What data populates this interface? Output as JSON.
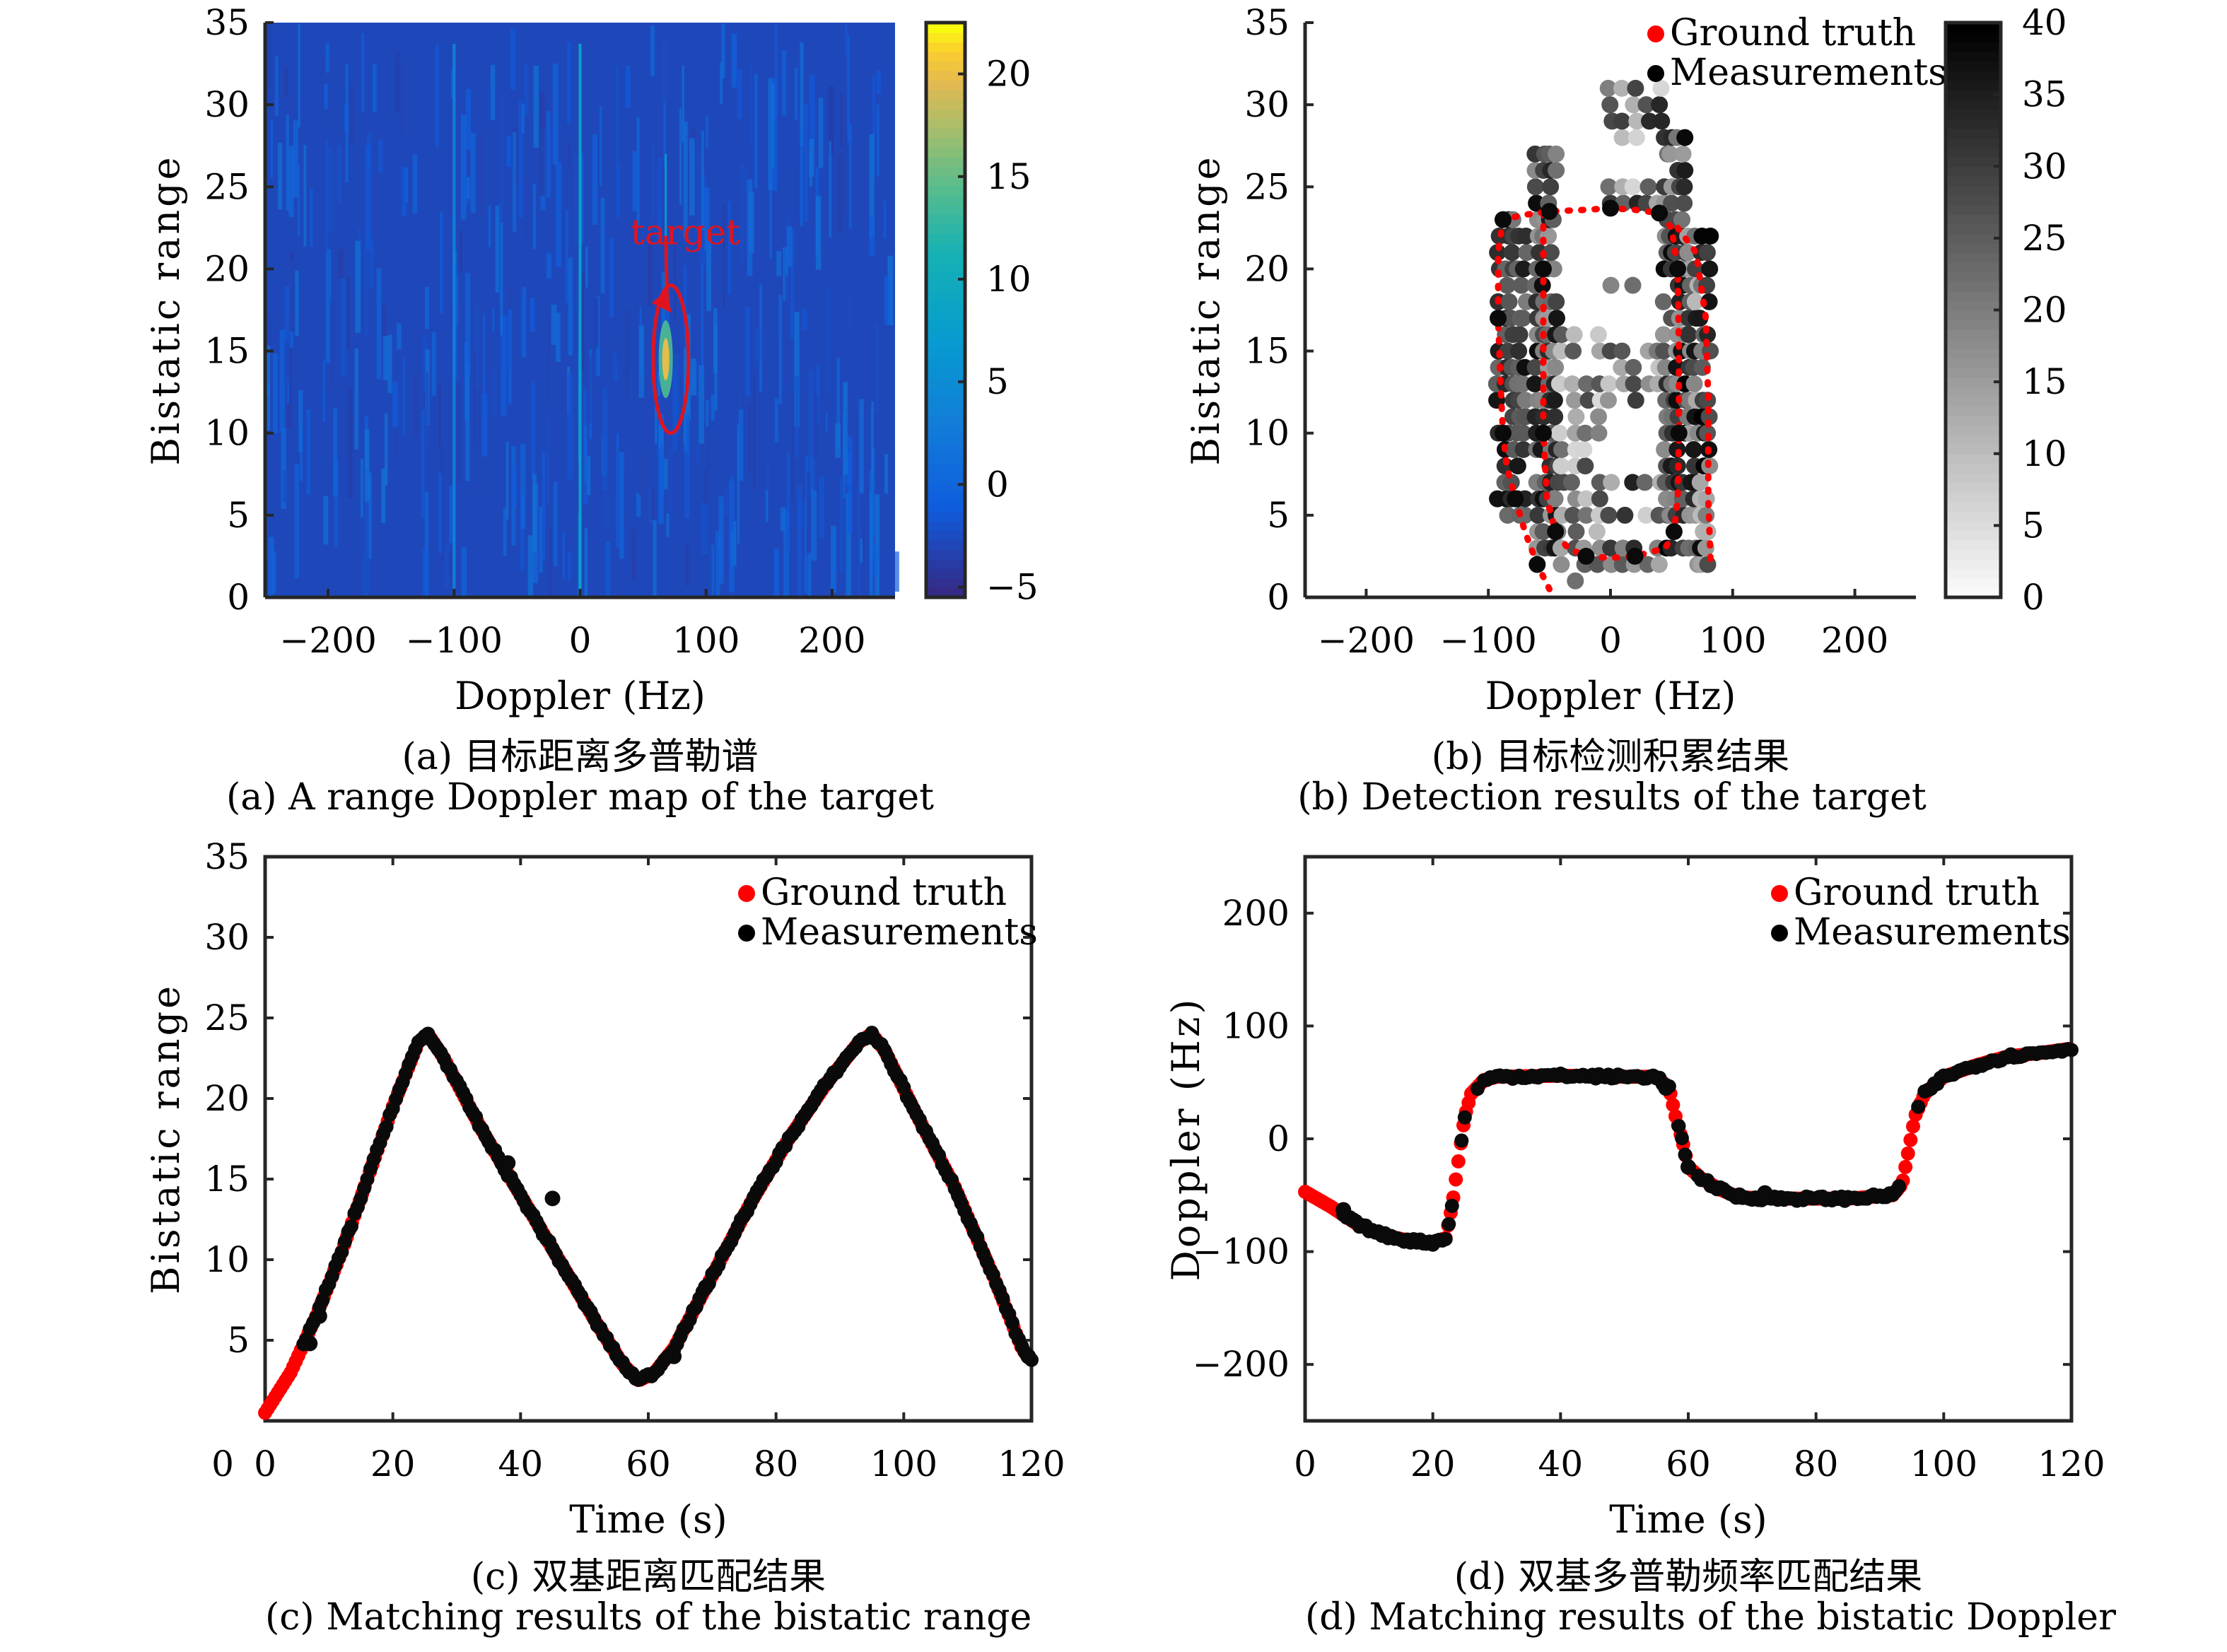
{
  "figure": {
    "captions": {
      "a_cn": "(a) 目标距离多普勒谱",
      "a_en": "(a) A range Doppler map of the target",
      "b_cn": "(b) 目标检测积累结果",
      "b_en": "(b) Detection results of the target",
      "c_cn": "(c) 双基距离匹配结果",
      "c_en": "(c) Matching results of the bistatic range",
      "d_cn": "(d) 双基多普勒频率匹配结果",
      "d_en": "(d) Matching results of the bistatic Doppler"
    }
  },
  "chart_data": [
    {
      "id": "a",
      "type": "heatmap",
      "title": "",
      "xlabel": "Doppler (Hz)",
      "ylabel": "Bistatic range",
      "xlim": [
        -250,
        250
      ],
      "ylim": [
        0,
        35
      ],
      "xticks": [
        -200,
        -100,
        0,
        100,
        200
      ],
      "yticks": [
        0,
        5,
        10,
        15,
        20,
        25,
        30,
        35
      ],
      "colormap": "parula",
      "colorbar": {
        "lim": [
          -5.5,
          22.5
        ],
        "ticks": [
          -5,
          0,
          5,
          10,
          15,
          20
        ]
      },
      "background_level": -3,
      "features": [
        {
          "name": "zero-Doppler clutter line",
          "doppler": 0,
          "level": 8
        },
        {
          "name": "faint line",
          "doppler": -100,
          "level": 3
        },
        {
          "name": "target",
          "doppler": 68,
          "range": 14.5,
          "peak": 20
        }
      ],
      "annotation": {
        "text": "target",
        "text_at": [
          40,
          21.5
        ],
        "arrow_to": [
          68,
          17.5
        ],
        "ellipse_center": [
          72,
          14.5
        ],
        "ellipse_radius": [
          14,
          4.5
        ],
        "color": "#e0141e"
      }
    },
    {
      "id": "b",
      "type": "scatter",
      "xlabel": "Doppler (Hz)",
      "ylabel": "Bistatic range",
      "xlim": [
        -250,
        250
      ],
      "ylim": [
        0,
        35
      ],
      "xticks": [
        -200,
        -100,
        0,
        100,
        200
      ],
      "yticks": [
        0,
        5,
        10,
        15,
        20,
        25,
        30,
        35
      ],
      "legend": {
        "position": "top-right",
        "entries": [
          {
            "label": "Ground truth",
            "color": "#ff0000"
          },
          {
            "label": "Measurements",
            "color": "#000000"
          }
        ]
      },
      "colormap": "gray-reversed",
      "colorbar": {
        "lim": [
          0,
          40
        ],
        "ticks": [
          0,
          5,
          10,
          15,
          20,
          25,
          30,
          35,
          40
        ]
      },
      "ground_truth_path": [
        [
          -50,
          0.5
        ],
        [
          -60,
          2
        ],
        [
          -70,
          4
        ],
        [
          -78,
          6
        ],
        [
          -85,
          8
        ],
        [
          -88,
          10
        ],
        [
          -90,
          13
        ],
        [
          -92,
          17
        ],
        [
          -92,
          21
        ],
        [
          -88,
          23
        ],
        [
          -70,
          23.3
        ],
        [
          -50,
          23.5
        ],
        [
          -20,
          23.6
        ],
        [
          0,
          23.7
        ],
        [
          20,
          23.6
        ],
        [
          40,
          23.4
        ],
        [
          50,
          22.5
        ],
        [
          55,
          20
        ],
        [
          56,
          15
        ],
        [
          56,
          10
        ],
        [
          55,
          6
        ],
        [
          52,
          4
        ],
        [
          45,
          3
        ],
        [
          20,
          2.5
        ],
        [
          0,
          2.4
        ],
        [
          -20,
          2.5
        ],
        [
          -35,
          3
        ],
        [
          -45,
          4
        ],
        [
          -52,
          6
        ],
        [
          -55,
          10
        ],
        [
          -55,
          15
        ],
        [
          -55,
          20
        ],
        [
          -55,
          23.3
        ]
      ],
      "ground_truth_path2": [
        [
          55,
          22.5
        ],
        [
          70,
          21
        ],
        [
          78,
          17
        ],
        [
          80,
          12
        ],
        [
          80,
          6
        ],
        [
          82,
          2
        ]
      ],
      "measurement_clusters": [
        {
          "x": [
            -92,
            -85,
            -80,
            -75,
            -70
          ],
          "y": [
            5,
            6,
            7,
            8,
            9,
            10,
            11,
            12,
            13,
            14,
            15,
            16,
            17,
            18,
            19,
            20,
            21,
            22,
            23
          ],
          "level": [
            20,
            38
          ]
        },
        {
          "x": [
            -60,
            -55,
            -50,
            -45
          ],
          "y": [
            3,
            4,
            5,
            6,
            7,
            8,
            9,
            10,
            11,
            12,
            13,
            14,
            15,
            16,
            17,
            18,
            19,
            20,
            21,
            22,
            23,
            24,
            25,
            26,
            27
          ],
          "level": [
            15,
            38
          ]
        },
        {
          "x": [
            -40,
            -30,
            -20,
            -10
          ],
          "y": [
            1,
            2,
            3,
            4,
            5,
            6,
            7,
            8,
            9,
            10,
            11,
            12,
            13,
            14,
            15,
            16
          ],
          "level": [
            5,
            30
          ]
        },
        {
          "x": [
            0,
            10,
            20,
            30,
            40
          ],
          "y": [
            2,
            3,
            5,
            7,
            12,
            13,
            14,
            15,
            19,
            24,
            25,
            28,
            29,
            30,
            31
          ],
          "level": [
            5,
            35
          ]
        },
        {
          "x": [
            45,
            50,
            55,
            60
          ],
          "y": [
            3,
            4,
            5,
            6,
            7,
            8,
            9,
            10,
            11,
            12,
            13,
            14,
            15,
            16,
            17,
            18,
            19,
            20,
            21,
            22,
            23,
            24,
            25,
            26,
            27,
            28
          ],
          "level": [
            15,
            40
          ]
        },
        {
          "x": [
            65,
            70,
            75,
            80
          ],
          "y": [
            2,
            3,
            4,
            5,
            6,
            7,
            8,
            9,
            10,
            11,
            12,
            13,
            14,
            15,
            16,
            17,
            18,
            19,
            20,
            21,
            22
          ],
          "level": [
            10,
            40
          ]
        }
      ]
    },
    {
      "id": "c",
      "type": "scatter",
      "xlabel": "Time (s)",
      "ylabel": "Bistatic range",
      "xlim": [
        0,
        120
      ],
      "ylim": [
        0,
        35
      ],
      "xticks": [
        0,
        20,
        40,
        60,
        80,
        100,
        120
      ],
      "yticks": [
        5,
        10,
        15,
        20,
        25,
        30,
        35
      ],
      "ytick_extra_label": "0",
      "legend": {
        "position": "top-right",
        "entries": [
          {
            "label": "Ground truth",
            "color": "#ff0000"
          },
          {
            "label": "Measurements",
            "color": "#000000"
          }
        ]
      },
      "ground_truth": {
        "t": [
          0,
          4,
          8,
          12,
          16,
          20,
          24,
          25.5,
          28,
          34,
          40,
          46,
          52,
          56,
          58.5,
          61,
          64,
          70,
          76,
          82,
          88,
          93,
          95,
          97,
          102,
          108,
          114,
          118.5,
          120
        ],
        "y": [
          0.5,
          3,
          6.5,
          10.5,
          15,
          19.5,
          23.5,
          24,
          22.5,
          18,
          14,
          10,
          6,
          3.5,
          2.5,
          3,
          4.5,
          9,
          13.5,
          17.5,
          21,
          23.5,
          24,
          23,
          19,
          14.5,
          9,
          4.5,
          3.7
        ]
      },
      "measurements": {
        "t_start": 6,
        "t_end": 120,
        "outliers": [
          [
            7,
            4.8
          ],
          [
            8.5,
            6.5
          ],
          [
            38,
            16
          ],
          [
            45,
            13.8
          ],
          [
            69,
            8.3
          ],
          [
            64,
            4
          ],
          [
            119.5,
            4
          ]
        ]
      }
    },
    {
      "id": "d",
      "type": "scatter",
      "xlabel": "Time (s)",
      "ylabel": "Doppler (Hz)",
      "xlim": [
        0,
        120
      ],
      "ylim": [
        -250,
        250
      ],
      "xticks": [
        0,
        20,
        40,
        60,
        80,
        100,
        120
      ],
      "yticks": [
        -200,
        -100,
        0,
        100,
        200
      ],
      "legend": {
        "position": "top-right",
        "entries": [
          {
            "label": "Ground truth",
            "color": "#ff0000"
          },
          {
            "label": "Measurements",
            "color": "#000000"
          }
        ]
      },
      "ground_truth": {
        "t": [
          0,
          4,
          8,
          12,
          16,
          20,
          22,
          23,
          24,
          25,
          26,
          28,
          30,
          40,
          50,
          55,
          57,
          58,
          59,
          60,
          62,
          65,
          68,
          75,
          85,
          92,
          93.5,
          94.5,
          95.5,
          97,
          100,
          105,
          110,
          115,
          120
        ],
        "y": [
          -47,
          -60,
          -75,
          -85,
          -90,
          -92,
          -88,
          -60,
          -20,
          20,
          40,
          52,
          55,
          56,
          55,
          55,
          45,
          20,
          0,
          -25,
          -35,
          -45,
          -52,
          -53,
          -53,
          -50,
          -40,
          -10,
          20,
          40,
          55,
          65,
          73,
          76,
          80
        ]
      },
      "measurements": {
        "t_start": 6,
        "t_end": 120,
        "outliers": [
          [
            6,
            -63
          ],
          [
            7.5,
            -72
          ],
          [
            68,
            -50
          ],
          [
            72,
            -48
          ],
          [
            56.5,
            45
          ],
          [
            60,
            -25
          ]
        ]
      }
    }
  ]
}
